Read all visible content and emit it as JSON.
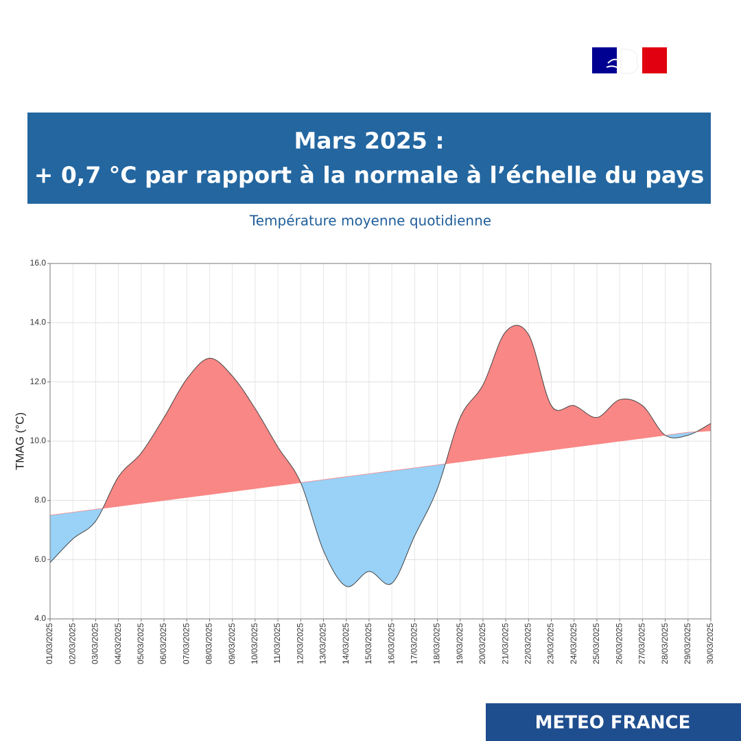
{
  "header": {
    "title_line1": "Mars 2025 :",
    "title_line2": "+ 0,7 °C par rapport à la normale à l’échelle du pays"
  },
  "footer": {
    "brand": "METEO FRANCE"
  },
  "chart_data": {
    "type": "area",
    "title": "Température moyenne quotidienne",
    "ylabel": "TMAG (°C)",
    "categories": [
      "01/03/2025",
      "02/03/2025",
      "03/03/2025",
      "04/03/2025",
      "05/03/2025",
      "06/03/2025",
      "07/03/2025",
      "08/03/2025",
      "09/03/2025",
      "10/03/2025",
      "11/03/2025",
      "12/03/2025",
      "13/03/2025",
      "14/03/2025",
      "15/03/2025",
      "16/03/2025",
      "17/03/2025",
      "18/03/2025",
      "19/03/2025",
      "20/03/2025",
      "21/03/2025",
      "22/03/2025",
      "23/03/2025",
      "24/03/2025",
      "25/03/2025",
      "26/03/2025",
      "27/03/2025",
      "28/03/2025",
      "29/03/2025",
      "30/03/2025"
    ],
    "values": [
      5.9,
      6.7,
      7.3,
      8.8,
      9.6,
      10.8,
      12.1,
      12.8,
      12.2,
      11.1,
      9.8,
      8.6,
      6.3,
      5.1,
      5.6,
      5.2,
      6.8,
      8.4,
      10.8,
      11.9,
      13.7,
      13.6,
      11.2,
      11.2,
      10.8,
      11.4,
      11.2,
      10.2,
      10.2,
      10.6
    ],
    "normal": [
      7.5,
      7.6,
      7.7,
      7.8,
      7.9,
      8.0,
      8.1,
      8.2,
      8.3,
      8.4,
      8.5,
      8.6,
      8.7,
      8.8,
      8.9,
      9.0,
      9.1,
      9.2,
      9.3,
      9.4,
      9.5,
      9.6,
      9.7,
      9.8,
      9.9,
      10.0,
      10.1,
      10.2,
      10.3,
      10.35
    ],
    "above_color": "#f98785",
    "below_color": "#99d1f7",
    "line_color": "#444444",
    "ylim": [
      4,
      16
    ],
    "yticks": [
      {
        "value": 4,
        "label": "4.0"
      },
      {
        "value": 6,
        "label": "6.0"
      },
      {
        "value": 8,
        "label": "8.0"
      },
      {
        "value": 10,
        "label": "10.0"
      },
      {
        "value": 12,
        "label": "12.0"
      },
      {
        "value": 14,
        "label": "14.0"
      },
      {
        "value": 16,
        "label": "16.0"
      }
    ],
    "grid": true
  }
}
